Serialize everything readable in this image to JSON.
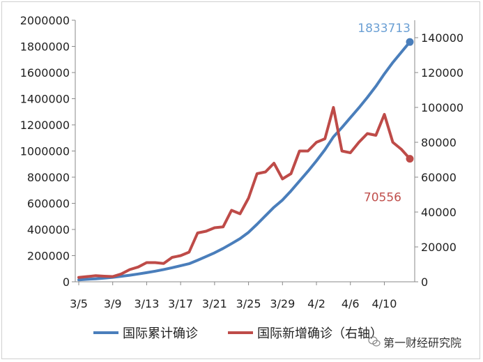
{
  "chart_data": {
    "type": "line",
    "x": [
      "3/5",
      "3/6",
      "3/7",
      "3/8",
      "3/9",
      "3/10",
      "3/11",
      "3/12",
      "3/13",
      "3/14",
      "3/15",
      "3/16",
      "3/17",
      "3/18",
      "3/19",
      "3/20",
      "3/21",
      "3/22",
      "3/23",
      "3/24",
      "3/25",
      "3/26",
      "3/27",
      "3/28",
      "3/29",
      "3/30",
      "3/31",
      "4/1",
      "4/2",
      "4/3",
      "4/4",
      "4/5",
      "4/6",
      "4/7",
      "4/8",
      "4/9",
      "4/10",
      "4/11",
      "4/12",
      "4/13"
    ],
    "x_tick_labels": [
      "3/5",
      "3/9",
      "3/13",
      "3/17",
      "3/21",
      "3/25",
      "3/29",
      "4/2",
      "4/6",
      "4/10"
    ],
    "left_axis": {
      "min": 0,
      "max": 2000000,
      "ticks": [
        "0",
        "200000",
        "400000",
        "600000",
        "800000",
        "1000000",
        "1200000",
        "1400000",
        "1600000",
        "1800000",
        "2000000"
      ]
    },
    "right_axis": {
      "min": 0,
      "max": 150000,
      "ticks": [
        "0",
        "20000",
        "40000",
        "60000",
        "80000",
        "100000",
        "120000",
        "140000"
      ]
    },
    "series": [
      {
        "name": "国际累计确诊",
        "axis": "left",
        "color": "#4a7ebb",
        "values": [
          15000,
          19000,
          23000,
          28000,
          34000,
          42000,
          50000,
          60000,
          70000,
          81000,
          94000,
          108000,
          123000,
          138000,
          165000,
          193000,
          222000,
          255000,
          292000,
          330000,
          378000,
          440000,
          505000,
          570000,
          625000,
          695000,
          770000,
          845000,
          925000,
          1010000,
          1108000,
          1180000,
          1255000,
          1330000,
          1410000,
          1495000,
          1590000,
          1677000,
          1755000,
          1833713
        ],
        "end_label": "1833713"
      },
      {
        "name": "国际新增确诊（右轴）",
        "axis": "right",
        "color": "#be4b48",
        "values": [
          2500,
          3000,
          3500,
          3200,
          3000,
          4500,
          7000,
          8500,
          11000,
          11000,
          10500,
          14000,
          15000,
          17000,
          28000,
          29000,
          31000,
          31500,
          41000,
          39000,
          48000,
          62000,
          63000,
          68000,
          59000,
          62000,
          75000,
          75000,
          80000,
          82000,
          100000,
          75000,
          74000,
          80000,
          85000,
          84000,
          96000,
          80000,
          76000,
          70556
        ],
        "end_label": "70556"
      }
    ]
  },
  "legend": {
    "item1": "国际累计确诊",
    "item2": "国际新增确诊（右轴）"
  },
  "watermark": {
    "text": "第一财经研究院",
    "icon": "wechat-icon"
  }
}
